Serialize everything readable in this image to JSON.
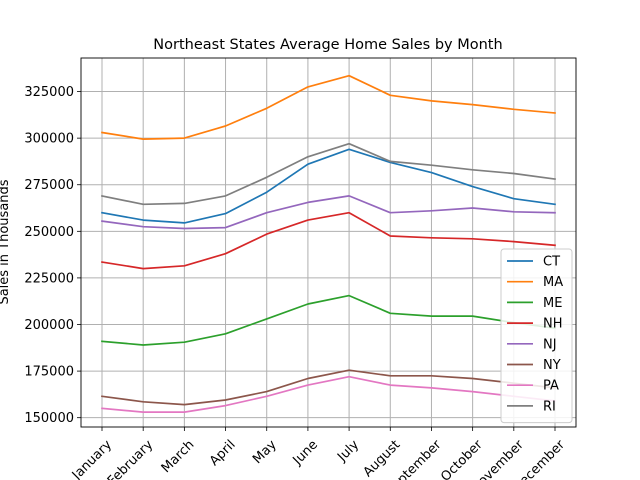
{
  "chart_data": {
    "type": "line",
    "title": "Northeast States Average Home Sales by Month",
    "xlabel": "",
    "ylabel": "Sales in Thousands",
    "categories": [
      "January",
      "February",
      "March",
      "April",
      "May",
      "June",
      "July",
      "August",
      "September",
      "October",
      "November",
      "December"
    ],
    "ylim": [
      145000,
      343000
    ],
    "yticks": [
      150000,
      175000,
      200000,
      225000,
      250000,
      275000,
      300000,
      325000
    ],
    "ytick_labels": [
      "150000",
      "175000",
      "200000",
      "225000",
      "250000",
      "275000",
      "300000",
      "325000"
    ],
    "grid": true,
    "legend_position": "lower-right",
    "series": [
      {
        "name": "CT",
        "color": "#1f77b4",
        "values": [
          260000,
          256000,
          254500,
          259500,
          271000,
          286000,
          294000,
          287000,
          281500,
          274000,
          267500,
          264500
        ]
      },
      {
        "name": "MA",
        "color": "#ff7f0e",
        "values": [
          303000,
          299500,
          300000,
          306500,
          316000,
          327500,
          333500,
          323000,
          320000,
          318000,
          315500,
          313500
        ]
      },
      {
        "name": "ME",
        "color": "#2ca02c",
        "values": [
          191000,
          189000,
          190500,
          195000,
          203000,
          211000,
          215500,
          206000,
          204500,
          204500,
          201000,
          198000
        ]
      },
      {
        "name": "NH",
        "color": "#d62728",
        "values": [
          233500,
          230000,
          231500,
          238000,
          248500,
          256000,
          260000,
          247500,
          246500,
          246000,
          244500,
          242500
        ]
      },
      {
        "name": "NJ",
        "color": "#9467bd",
        "values": [
          255500,
          252500,
          251500,
          252000,
          260000,
          265500,
          269000,
          260000,
          261000,
          262500,
          260500,
          260000
        ]
      },
      {
        "name": "NY",
        "color": "#8c564b",
        "values": [
          161500,
          158500,
          157000,
          159500,
          164000,
          171000,
          175500,
          172500,
          172500,
          171000,
          168500,
          166000
        ]
      },
      {
        "name": "PA",
        "color": "#e377c2",
        "values": [
          155000,
          153000,
          153000,
          156500,
          161500,
          167500,
          172000,
          167500,
          166000,
          164000,
          161500,
          159000
        ]
      },
      {
        "name": "RI",
        "color": "#7f7f7f",
        "values": [
          269000,
          264500,
          265000,
          269000,
          279000,
          290000,
          297000,
          287500,
          285500,
          283000,
          281000,
          278000
        ]
      }
    ]
  }
}
